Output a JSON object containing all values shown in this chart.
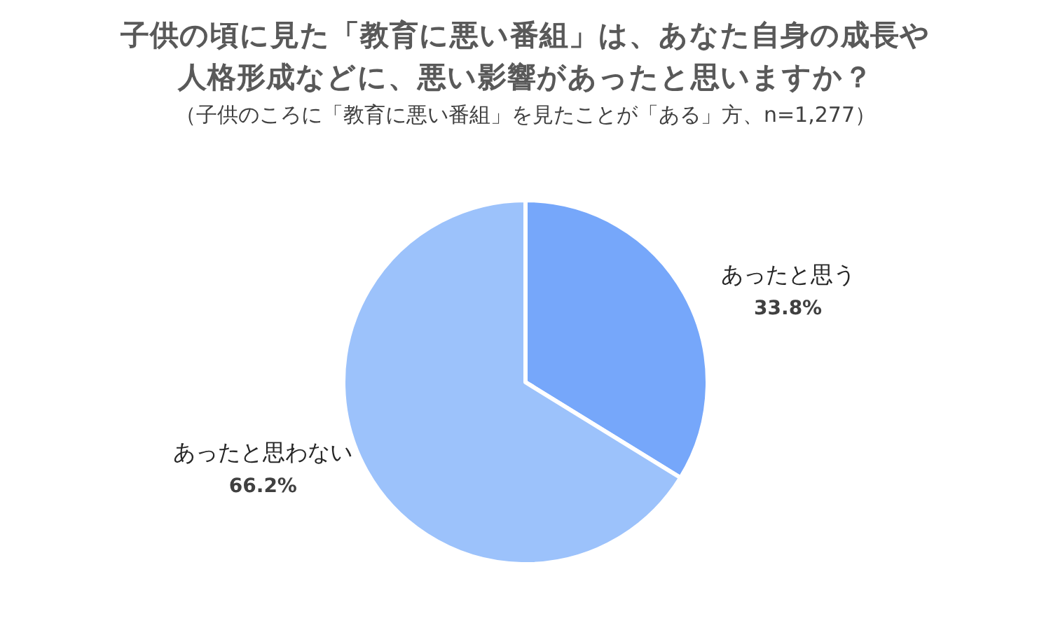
{
  "chart_data": {
    "type": "pie",
    "title": "子供の頃に見た「教育に悪い番組」は、あなた自身の成長や人格形成などに、悪い影響があったと思いますか？",
    "subtitle": "（子供のころに「教育に悪い番組」を見たことが「ある」方、n=1,277）",
    "categories": [
      "あったと思う",
      "あったと思わない"
    ],
    "values": [
      33.8,
      66.2
    ],
    "colors": [
      "#76a7fa",
      "#9cc2fb"
    ],
    "value_labels": [
      "33.8%",
      "66.2%"
    ]
  }
}
